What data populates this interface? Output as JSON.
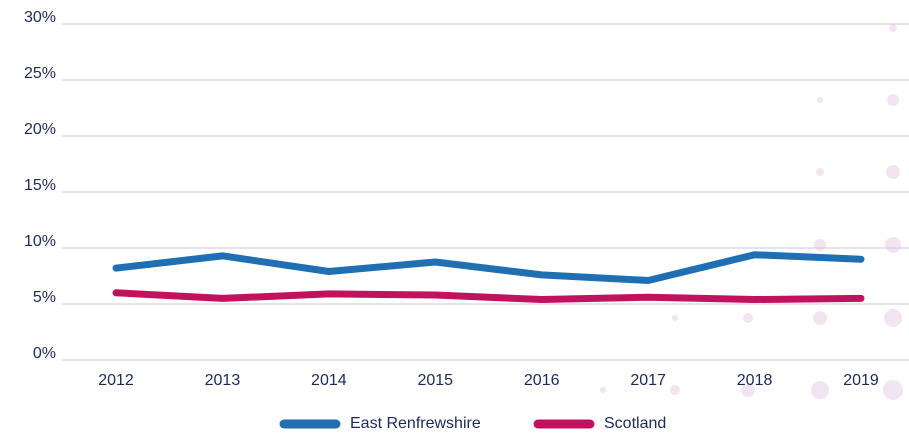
{
  "chart_data": {
    "type": "line",
    "categories": [
      "2012",
      "2013",
      "2014",
      "2015",
      "2016",
      "2017",
      "2018",
      "2019"
    ],
    "series": [
      {
        "name": "East Renfrewshire",
        "color": "#1f6fb2",
        "values": [
          8.2,
          9.3,
          7.9,
          8.75,
          7.6,
          7.1,
          9.4,
          9.0
        ]
      },
      {
        "name": "Scotland",
        "color": "#c2125f",
        "values": [
          6.0,
          5.5,
          5.9,
          5.8,
          5.4,
          5.6,
          5.4,
          5.5
        ]
      }
    ],
    "ylim": [
      0,
      30
    ],
    "yticks": [
      {
        "value": 0,
        "label": "0%"
      },
      {
        "value": 5,
        "label": "5%"
      },
      {
        "value": 10,
        "label": "10%"
      },
      {
        "value": 15,
        "label": "15%"
      },
      {
        "value": 20,
        "label": "20%"
      },
      {
        "value": 25,
        "label": "25%"
      },
      {
        "value": 30,
        "label": "30%"
      }
    ],
    "grid": true,
    "legend": "bottom"
  }
}
